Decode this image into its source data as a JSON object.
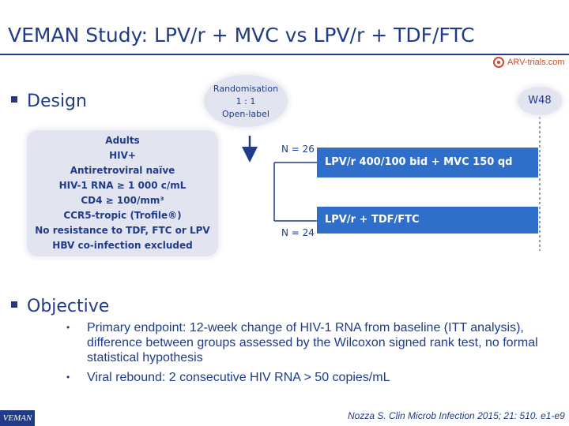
{
  "header": {
    "title": "VEMAN Study: LPV/r + MVC vs LPV/r + TDF/FTC",
    "logo_text": "ARV-trials.com"
  },
  "design": {
    "heading": "Design",
    "randomisation": [
      "Randomisation",
      "1 : 1",
      "Open-label"
    ],
    "week_label": "W48",
    "population": [
      "Adults",
      "HIV+",
      "Antiretroviral naïve",
      "HIV-1 RNA ≥ 1 000 c/mL",
      "CD4 ≥ 100/mm³",
      "CCR5-tropic (Trofile®)",
      "No resistance to TDF, FTC or LPV",
      "HBV co-infection excluded"
    ],
    "arms": [
      {
        "n": "N = 26",
        "label": "LPV/r 400/100 bid + MVC 150 qd"
      },
      {
        "n": "N = 24",
        "label": "LPV/r + TDF/FTC"
      }
    ]
  },
  "objective": {
    "heading": "Objective",
    "bullets": [
      "Primary endpoint: 12-week change of HIV-1 RNA from baseline (ITT analysis), difference between groups assessed by the Wilcoxon signed rank test, no formal statistical hypothesis",
      "Viral rebound: 2 consecutive HIV RNA > 50 copies/mL"
    ]
  },
  "footer": {
    "tag": "VEMAN",
    "citation": "Nozza S. Clin Microb Infection 2015; 21: 510. e1-e9"
  },
  "colors": {
    "primary": "#1f3b8a",
    "arm_fill": "#2f6fc9",
    "bubble_fill": "#e2e4ef",
    "logo_accent": "#d0482a"
  },
  "icons": {
    "bullet": "square-bullet",
    "logo": "arv-trials-logo-icon"
  }
}
